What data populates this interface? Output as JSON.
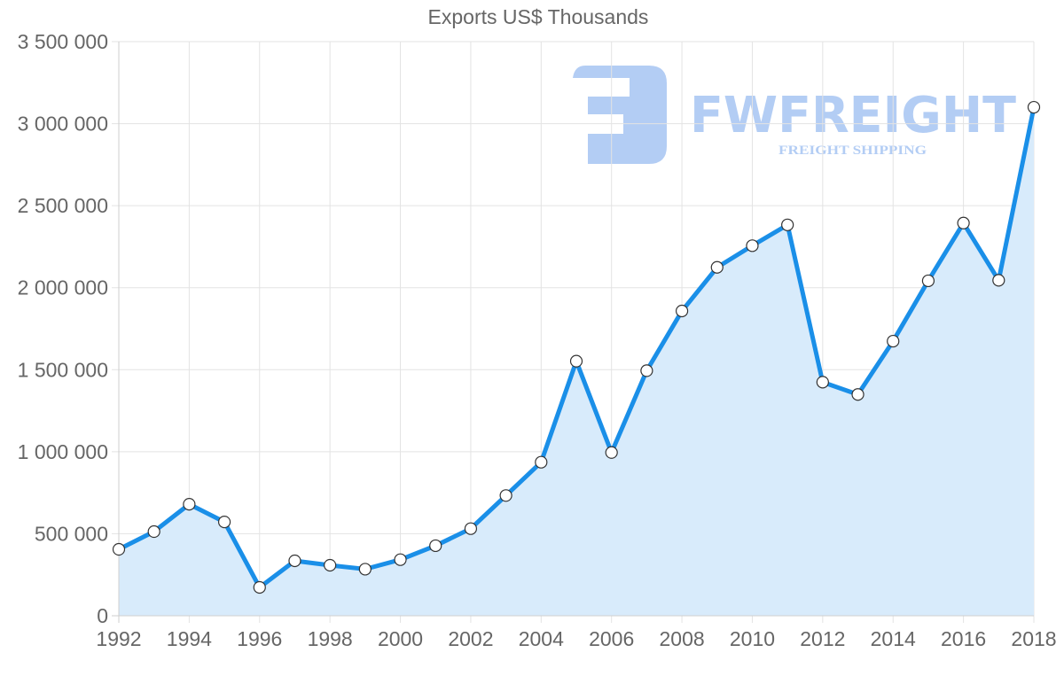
{
  "chart_data": {
    "type": "area",
    "title": "Exports US$ Thousands",
    "xlabel": "",
    "ylabel": "",
    "x": [
      1992,
      1993,
      1994,
      1995,
      1996,
      1997,
      1998,
      1999,
      2000,
      2001,
      2002,
      2003,
      2004,
      2005,
      2006,
      2007,
      2008,
      2009,
      2010,
      2011,
      2012,
      2013,
      2014,
      2015,
      2016,
      2017,
      2018
    ],
    "series": [
      {
        "name": "Exports US$ Thousands",
        "values": [
          405000,
          513000,
          680000,
          572000,
          173000,
          335000,
          308000,
          284000,
          342000,
          427000,
          531000,
          733000,
          936000,
          1552000,
          995000,
          1494000,
          1858000,
          2124000,
          2256000,
          2383000,
          1424000,
          1349000,
          1674000,
          2042000,
          2394000,
          2045000,
          3100000
        ],
        "line_color": "#1a8fe8",
        "fill_color": "#d8ebfb",
        "marker": "circle-white"
      }
    ],
    "ylim": [
      0,
      3500000
    ],
    "xlim": [
      1992,
      2018
    ],
    "yticks": [
      0,
      500000,
      1000000,
      1500000,
      2000000,
      2500000,
      3000000,
      3500000
    ],
    "ytick_labels": [
      "0",
      "500 000",
      "1 000 000",
      "1 500 000",
      "2 000 000",
      "2 500 000",
      "3 000 000",
      "3 500 000"
    ],
    "xticks": [
      1992,
      1994,
      1996,
      1998,
      2000,
      2002,
      2004,
      2006,
      2008,
      2010,
      2012,
      2014,
      2016,
      2018
    ],
    "xtick_labels": [
      "1992",
      "1994",
      "1996",
      "1998",
      "2000",
      "2002",
      "2004",
      "2006",
      "2008",
      "2010",
      "2012",
      "2014",
      "2016",
      "2018"
    ],
    "grid": true,
    "legend": null
  },
  "watermark": {
    "brand": "FWFREIGHT",
    "tagline": "FREIGHT SHIPPING",
    "color": "#b3cdf4",
    "logo_icon": "fw-logo-icon"
  },
  "colors": {
    "line": "#1a8fe8",
    "fill": "#d8ebfb",
    "text": "#666666",
    "grid": "#e3e3e3"
  }
}
